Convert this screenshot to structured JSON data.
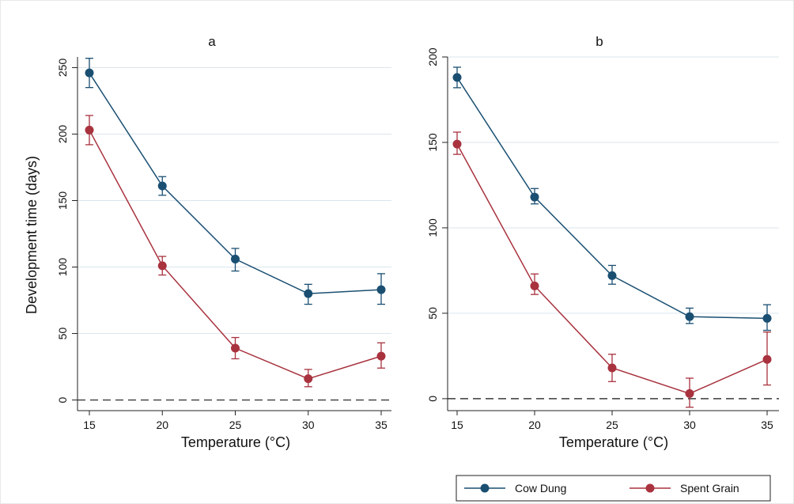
{
  "colors": {
    "cow_dung": "#1a4f72",
    "spent_grain": "#a8323e"
  },
  "legend": {
    "placement": "bottom-right",
    "items": [
      {
        "label": "Cow Dung",
        "color": "#1a4f72"
      },
      {
        "label": "Spent Grain",
        "color": "#a8323e"
      }
    ]
  },
  "chart_data": [
    {
      "type": "line",
      "title": "a",
      "xlabel": "Temperature (°C)",
      "ylabel": "Development time (days)",
      "x": [
        15,
        20,
        25,
        30,
        35
      ],
      "xticks": [
        15,
        20,
        25,
        30,
        35
      ],
      "ylim": [
        -8,
        258
      ],
      "yticks": [
        0,
        50,
        100,
        150,
        200,
        250
      ],
      "grid": true,
      "reference_line_y": 0,
      "series": [
        {
          "name": "Cow Dung",
          "values": [
            246,
            161,
            106,
            80,
            83
          ],
          "error_low": [
            235,
            154,
            97,
            72,
            72
          ],
          "error_high": [
            257,
            168,
            114,
            87,
            95
          ]
        },
        {
          "name": "Spent Grain",
          "values": [
            203,
            101,
            39,
            16,
            33
          ],
          "error_low": [
            192,
            94,
            31,
            10,
            24
          ],
          "error_high": [
            214,
            108,
            47,
            23,
            43
          ]
        }
      ]
    },
    {
      "type": "line",
      "title": "b",
      "xlabel": "Temperature (°C)",
      "ylabel": "",
      "x": [
        15,
        20,
        25,
        30,
        35
      ],
      "xticks": [
        15,
        20,
        25,
        30,
        35
      ],
      "ylim": [
        -7,
        200
      ],
      "yticks": [
        0,
        50,
        100,
        150,
        200
      ],
      "grid": true,
      "reference_line_y": 0,
      "series": [
        {
          "name": "Cow Dung",
          "values": [
            188,
            118,
            72,
            48,
            47
          ],
          "error_low": [
            182,
            114,
            67,
            44,
            40
          ],
          "error_high": [
            194,
            123,
            78,
            53,
            55
          ]
        },
        {
          "name": "Spent Grain",
          "values": [
            149,
            66,
            18,
            3,
            23
          ],
          "error_low": [
            143,
            61,
            10,
            -5,
            8
          ],
          "error_high": [
            156,
            73,
            26,
            12,
            39
          ]
        }
      ]
    }
  ]
}
